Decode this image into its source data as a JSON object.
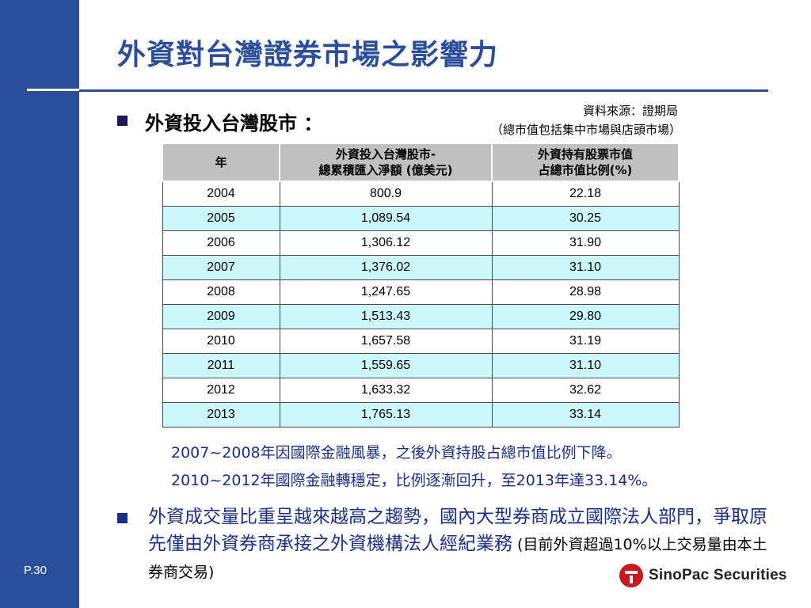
{
  "slide": {
    "title": "外資對台灣證券市場之影響力",
    "page_number": "P.30",
    "bullet1": "外資投入台灣股市 ：",
    "source_line1": "資料來源：證期局",
    "source_line2": "（總市值包括集中市場與店頭市場）"
  },
  "table": {
    "headers": {
      "col1": "年",
      "col2_line1": "外資投入台灣股市-",
      "col2_line2": "總累積匯入淨額 (億美元)",
      "col3_line1": "外資持有股票市值",
      "col3_line2": "占總市值比例(%)"
    },
    "rows": [
      {
        "year": "2004",
        "inflow": "800.9",
        "ratio": "22.18"
      },
      {
        "year": "2005",
        "inflow": "1,089.54",
        "ratio": "30.25"
      },
      {
        "year": "2006",
        "inflow": "1,306.12",
        "ratio": "31.90"
      },
      {
        "year": "2007",
        "inflow": "1,376.02",
        "ratio": "31.10"
      },
      {
        "year": "2008",
        "inflow": "1,247.65",
        "ratio": "28.98"
      },
      {
        "year": "2009",
        "inflow": "1,513.43",
        "ratio": "29.80"
      },
      {
        "year": "2010",
        "inflow": "1,657.58",
        "ratio": "31.19"
      },
      {
        "year": "2011",
        "inflow": "1,559.65",
        "ratio": "31.10"
      },
      {
        "year": "2012",
        "inflow": "1,633.32",
        "ratio": "32.62"
      },
      {
        "year": "2013",
        "inflow": "1,765.13",
        "ratio": "33.14"
      }
    ]
  },
  "notes": {
    "line1": "2007~2008年因國際金融風暴，之後外資持股占總市值比例下降。",
    "line2": "2010~2012年國際金融轉穩定，比例逐漸回升，至2013年達33.14%。"
  },
  "bullet2": {
    "text": "外資成交量比重呈越來越高之趨勢，國內大型券商成立國際法人部門，爭取原先僅由外資券商承接之外資機構法人經紀業務",
    "small": " (目前外資超過10%以上交易量由本土券商交易)"
  },
  "logo": {
    "text": "SinoPac Securities"
  },
  "colors": {
    "primary_blue": "#2a4e9c",
    "text_blue": "#1a2f8a",
    "header_gray": "#c0c0c0",
    "alt_row_cyan": "#ccf7fb",
    "logo_red": "#c8171e"
  }
}
